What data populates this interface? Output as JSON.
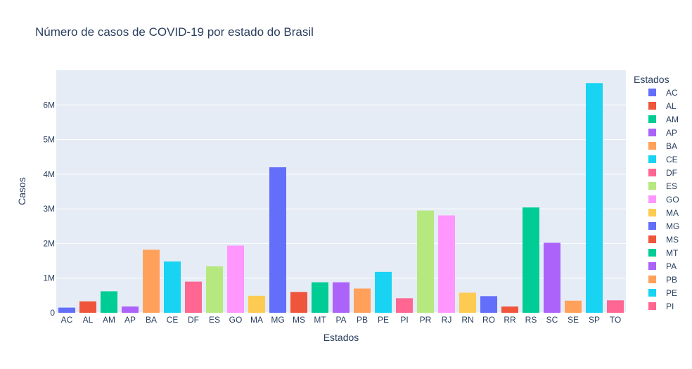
{
  "chart_data": {
    "type": "bar",
    "title": "Número de casos de COVID-19 por estado do Brasil",
    "xlabel": "Estados",
    "ylabel": "Casos",
    "legend_title": "Estados",
    "legend_placement": "right",
    "grid": true,
    "ylim": [
      0,
      7000000
    ],
    "yticks": [
      0,
      1000000,
      2000000,
      3000000,
      4000000,
      5000000,
      6000000
    ],
    "ytick_labels": [
      "0",
      "1M",
      "2M",
      "3M",
      "4M",
      "5M",
      "6M"
    ],
    "categories": [
      "AC",
      "AL",
      "AM",
      "AP",
      "BA",
      "CE",
      "DF",
      "ES",
      "GO",
      "MA",
      "MG",
      "MS",
      "MT",
      "PA",
      "PB",
      "PE",
      "PI",
      "PR",
      "RJ",
      "RN",
      "RO",
      "RR",
      "RS",
      "SC",
      "SE",
      "SP",
      "TO"
    ],
    "values": [
      150000,
      330000,
      620000,
      180000,
      1820000,
      1480000,
      900000,
      1340000,
      1940000,
      490000,
      4200000,
      600000,
      880000,
      880000,
      700000,
      1180000,
      420000,
      2950000,
      2810000,
      580000,
      480000,
      180000,
      3040000,
      2020000,
      350000,
      6630000,
      360000
    ],
    "colors": [
      "#636efa",
      "#EF553B",
      "#00cc96",
      "#ab63fa",
      "#FFA15A",
      "#19d3f3",
      "#FF6692",
      "#B6E880",
      "#FF97FF",
      "#FECB52",
      "#636efa",
      "#EF553B",
      "#00cc96",
      "#ab63fa",
      "#FFA15A",
      "#19d3f3",
      "#FF6692",
      "#B6E880",
      "#FF97FF",
      "#FECB52",
      "#636efa",
      "#EF553B",
      "#00cc96",
      "#ab63fa",
      "#FFA15A",
      "#19d3f3",
      "#FF6692"
    ],
    "legend_entries": [
      "AC",
      "AL",
      "AM",
      "AP",
      "BA",
      "CE",
      "DF",
      "ES",
      "GO",
      "MA",
      "MG",
      "MS",
      "MT",
      "PA",
      "PB",
      "PE",
      "PI"
    ]
  }
}
